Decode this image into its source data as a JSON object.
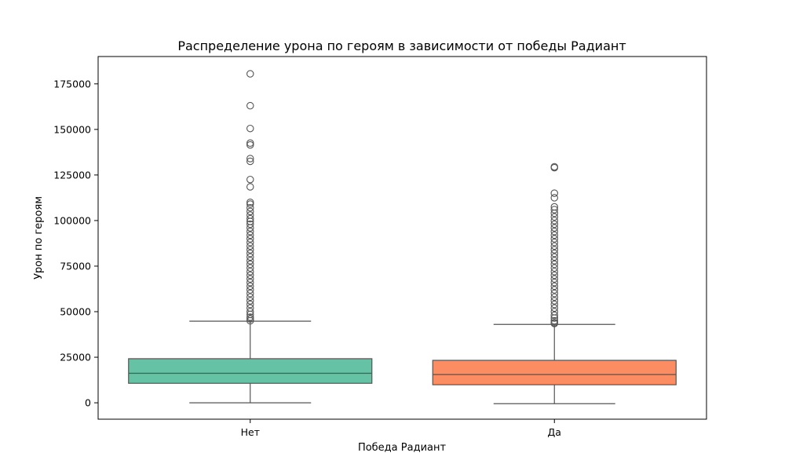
{
  "chart_data": {
    "type": "box",
    "title": "Распределение урона по героям в зависимости от победы Радиант",
    "xlabel": "Победа Радиант",
    "ylabel": "Урон по героям",
    "ylim": [
      -9000,
      190000
    ],
    "yticks": [
      0,
      25000,
      50000,
      75000,
      100000,
      125000,
      150000,
      175000
    ],
    "grid": false,
    "categories": [
      "Нет",
      "Да"
    ],
    "colors": [
      "#66c2a5",
      "#fc8d62"
    ],
    "line_color": "#555555",
    "boxes": [
      {
        "category": "Нет",
        "whisker_low": 0,
        "q1": 10700,
        "median": 16200,
        "q3": 24200,
        "whisker_high": 44800,
        "outliers": [
          180500,
          163000,
          150500,
          142500,
          141500,
          134000,
          132500,
          122500,
          118500,
          110000,
          109000,
          107000,
          105000,
          103000,
          101000,
          99500,
          98000,
          96000,
          94000,
          92000,
          90000,
          88000,
          86000,
          84000,
          82000,
          80000,
          78000,
          76000,
          74000,
          72000,
          70000,
          68000,
          66000,
          64000,
          62000,
          60000,
          58000,
          56000,
          54000,
          52000,
          50000,
          48500,
          47000,
          46000,
          45000
        ]
      },
      {
        "category": "Да",
        "whisker_low": -500,
        "q1": 9900,
        "median": 15500,
        "q3": 23300,
        "whisker_high": 43000,
        "outliers": [
          129500,
          129000,
          115000,
          112500,
          107500,
          106000,
          104000,
          102000,
          100000,
          98000,
          96000,
          94000,
          92000,
          90000,
          88000,
          86000,
          84000,
          82000,
          80000,
          78000,
          76000,
          74000,
          72000,
          70000,
          68000,
          66000,
          64000,
          62000,
          60000,
          58000,
          56000,
          54000,
          52000,
          50000,
          48000,
          46500,
          45000,
          44000,
          43500
        ]
      }
    ]
  }
}
